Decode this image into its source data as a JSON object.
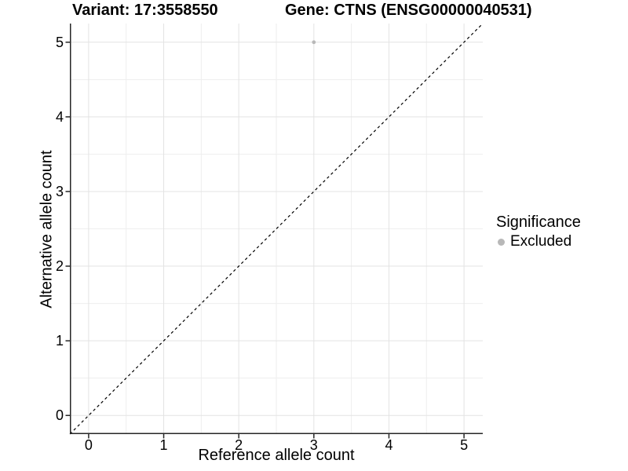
{
  "chart_data": {
    "type": "scatter",
    "title_left": "Variant: 17:3558550",
    "title_right": "Gene: CTNS (ENSG00000040531)",
    "xlabel": "Reference allele count",
    "ylabel": "Alternative allele count",
    "xlim": [
      -0.25,
      5.25
    ],
    "ylim": [
      -0.25,
      5.25
    ],
    "x_ticks": [
      0,
      1,
      2,
      3,
      4,
      5
    ],
    "y_ticks": [
      0,
      1,
      2,
      3,
      4,
      5
    ],
    "x_minor": [
      0.5,
      1.5,
      2.5,
      3.5,
      4.5
    ],
    "y_minor": [
      0.5,
      1.5,
      2.5,
      3.5,
      4.5
    ],
    "grid": true,
    "points": [
      {
        "x": 3,
        "y": 5,
        "series": "Excluded"
      }
    ],
    "identity_line": {
      "style": "dashed",
      "from": [
        -0.25,
        -0.25
      ],
      "to": [
        5.25,
        5.25
      ],
      "color": "#000000"
    },
    "legend": {
      "title": "Significance",
      "position": "right",
      "items": [
        {
          "label": "Excluded",
          "color": "#b8b8b8"
        }
      ]
    },
    "colors": {
      "point": "#b8b8b8",
      "grid_major": "#e3e3e3",
      "grid_minor": "#eeeeee",
      "axis_line": "#262626",
      "tick_mark": "#262626"
    }
  }
}
